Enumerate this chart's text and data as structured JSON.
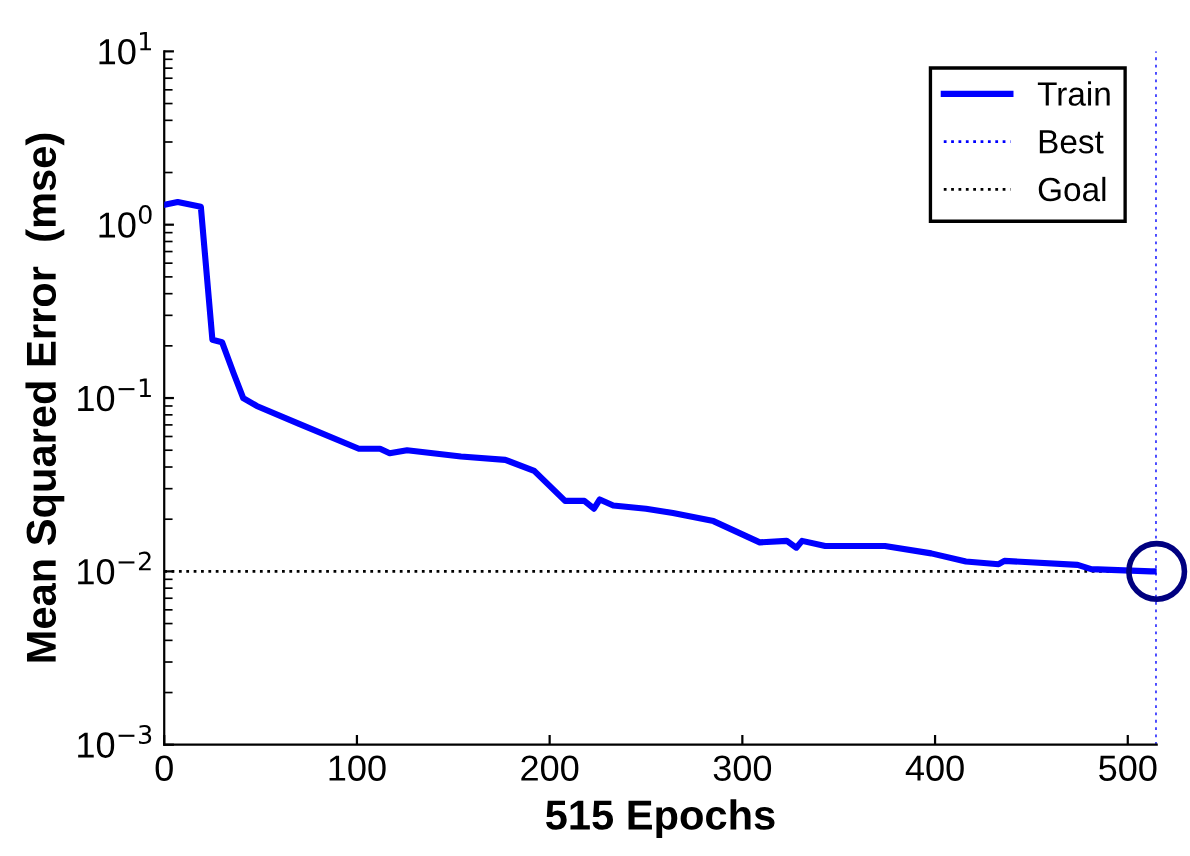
{
  "chart_data": {
    "type": "line",
    "xlabel": "515 Epochs",
    "ylabel": "Mean Squared Error  (mse)",
    "series": [
      {
        "name": "Train",
        "color": "#0000ff",
        "line_style": "solid",
        "x": [
          0,
          7,
          19,
          25,
          30,
          36,
          41,
          48,
          70,
          101,
          112,
          117,
          126,
          154,
          177,
          192,
          208,
          218,
          223,
          226,
          233,
          250,
          264,
          285,
          309,
          323,
          328,
          331,
          343,
          374,
          398,
          416,
          433,
          436,
          474,
          481,
          512,
          515
        ],
        "values": [
          1.3,
          1.35,
          1.27,
          0.217,
          0.21,
          0.139,
          0.1,
          0.09,
          0.071,
          0.051,
          0.051,
          0.048,
          0.05,
          0.046,
          0.044,
          0.038,
          0.0255,
          0.0255,
          0.023,
          0.026,
          0.024,
          0.023,
          0.0217,
          0.0195,
          0.0147,
          0.015,
          0.0137,
          0.015,
          0.014,
          0.014,
          0.0127,
          0.0114,
          0.011,
          0.0115,
          0.0109,
          0.0103,
          0.01,
          0.01
        ]
      },
      {
        "color": "#000080",
        "type": "scatter",
        "marker": "circle",
        "x": [
          515
        ],
        "values": [
          0.01
        ]
      }
    ],
    "ref_lines": [
      {
        "axis": "x",
        "value": 515,
        "label": "Best",
        "color": "#0000ff",
        "line_style": "dotted"
      },
      {
        "axis": "y",
        "value": 0.01,
        "label": "Goal",
        "color": "#000000",
        "line_style": "dotted"
      }
    ],
    "log": "y",
    "xlim": [
      0,
      515
    ],
    "ylim": [
      0.001,
      10
    ],
    "xticks": [
      0,
      100,
      200,
      300,
      400,
      500
    ],
    "yticks": [
      {
        "value": 0.001,
        "label": "10$^{−3}$"
      },
      {
        "value": 0.01,
        "label": "10$^{−2}$"
      },
      {
        "value": 0.1,
        "label": "10$^{−1}$"
      },
      {
        "value": 1,
        "label": "10$^{0}$"
      },
      {
        "value": 10,
        "label": "10$^{1}$"
      }
    ],
    "grid": false,
    "legend": "top right"
  }
}
